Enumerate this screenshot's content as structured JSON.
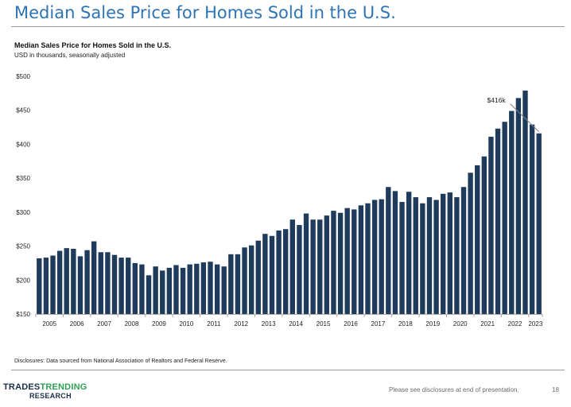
{
  "slide": {
    "title": "Median Sales Price for Homes Sold in the U.S."
  },
  "disclosures": "Disclosures: Data sourced from National Association of Realtors and Federal Reserve.",
  "footer": {
    "note": "Please see disclosures at end of presentation.",
    "page_number": "18",
    "logo_word1": "TRADES",
    "logo_word2": "TRENDING",
    "logo_word3": "RESEARCH"
  },
  "colors": {
    "title": "#2e74b5",
    "bar": "#1f3b5c",
    "axis": "#a6a6a6",
    "logo_dark": "#1c2f4a",
    "logo_green": "#2e9e57"
  },
  "chart_data": {
    "type": "bar",
    "title": "Median Sales Price for Homes Sold in the U.S.",
    "subtitle": "USD in thousands, seasonally adjusted",
    "xlabel": "",
    "ylabel": "",
    "ylim": [
      150,
      500
    ],
    "yticks": [
      150,
      200,
      250,
      300,
      350,
      400,
      450,
      500
    ],
    "ytick_labels": [
      "$150",
      "$200",
      "$250",
      "$300",
      "$350",
      "$400",
      "$450",
      "$500"
    ],
    "xtick_labels": [
      "2005",
      "2006",
      "2007",
      "2008",
      "2009",
      "2010",
      "2011",
      "2012",
      "2013",
      "2014",
      "2015",
      "2016",
      "2017",
      "2018",
      "2019",
      "2020",
      "2021",
      "2022",
      "2023"
    ],
    "grid": false,
    "legend": "none",
    "periods_per_year": 4,
    "categories": [
      "2005Q1",
      "2005Q2",
      "2005Q3",
      "2005Q4",
      "2006Q1",
      "2006Q2",
      "2006Q3",
      "2006Q4",
      "2007Q1",
      "2007Q2",
      "2007Q3",
      "2007Q4",
      "2008Q1",
      "2008Q2",
      "2008Q3",
      "2008Q4",
      "2009Q1",
      "2009Q2",
      "2009Q3",
      "2009Q4",
      "2010Q1",
      "2010Q2",
      "2010Q3",
      "2010Q4",
      "2011Q1",
      "2011Q2",
      "2011Q3",
      "2011Q4",
      "2012Q1",
      "2012Q2",
      "2012Q3",
      "2012Q4",
      "2013Q1",
      "2013Q2",
      "2013Q3",
      "2013Q4",
      "2014Q1",
      "2014Q2",
      "2014Q3",
      "2014Q4",
      "2015Q1",
      "2015Q2",
      "2015Q3",
      "2015Q4",
      "2016Q1",
      "2016Q2",
      "2016Q3",
      "2016Q4",
      "2017Q1",
      "2017Q2",
      "2017Q3",
      "2017Q4",
      "2018Q1",
      "2018Q2",
      "2018Q3",
      "2018Q4",
      "2019Q1",
      "2019Q2",
      "2019Q3",
      "2019Q4",
      "2020Q1",
      "2020Q2",
      "2020Q3",
      "2020Q4",
      "2021Q1",
      "2021Q2",
      "2021Q3",
      "2021Q4",
      "2022Q1",
      "2022Q2",
      "2022Q3",
      "2022Q4",
      "2023Q1",
      "2023Q2"
    ],
    "values": [
      232,
      233,
      236,
      243,
      247,
      246,
      235,
      244,
      257,
      241,
      241,
      237,
      233,
      233,
      225,
      223,
      207,
      220,
      214,
      218,
      222,
      218,
      223,
      224,
      226,
      227,
      223,
      220,
      238,
      238,
      248,
      251,
      258,
      268,
      265,
      273,
      275,
      289,
      281,
      298,
      289,
      289,
      295,
      302,
      299,
      306,
      304,
      310,
      313,
      318,
      319,
      337,
      331,
      315,
      330,
      322,
      313,
      322,
      318,
      327,
      329,
      322,
      337,
      358,
      369,
      382,
      411,
      423,
      433,
      449,
      468,
      479,
      429,
      416
    ],
    "annotations": [
      {
        "text": "$416k",
        "target_index": 73
      }
    ]
  }
}
